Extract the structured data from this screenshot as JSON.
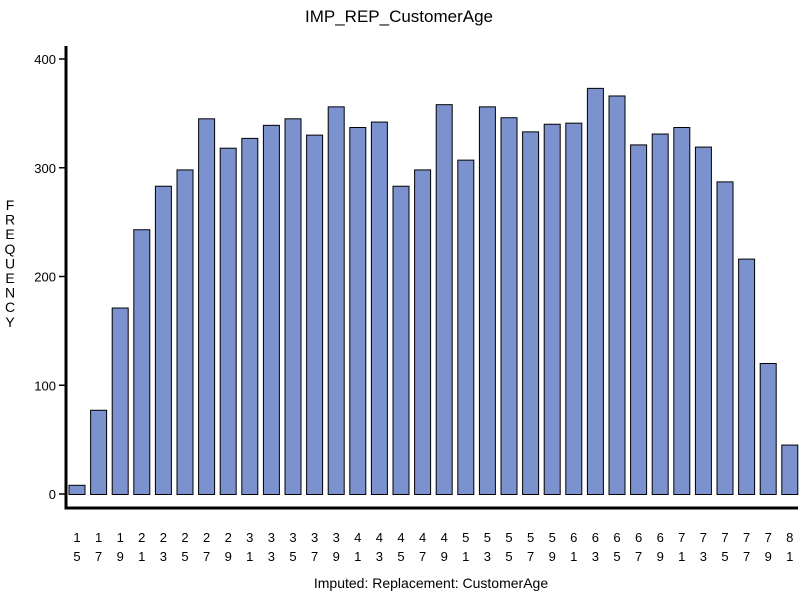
{
  "chart_data": {
    "type": "bar",
    "title": "IMP_REP_CustomerAge",
    "xlabel": "Imputed: Replacement: CustomerAge",
    "ylabel": "FREQUENCY",
    "ylim": [
      0,
      400
    ],
    "yticks": [
      0,
      100,
      200,
      300,
      400
    ],
    "grid": false,
    "bar_color": "#7B92CE",
    "categories": [
      "15",
      "17",
      "19",
      "21",
      "23",
      "25",
      "27",
      "29",
      "31",
      "33",
      "35",
      "37",
      "39",
      "41",
      "43",
      "45",
      "47",
      "49",
      "51",
      "53",
      "55",
      "57",
      "59",
      "61",
      "63",
      "65",
      "67",
      "69",
      "71",
      "73",
      "75",
      "77",
      "79",
      "81"
    ],
    "values": [
      8,
      77,
      171,
      243,
      283,
      298,
      345,
      318,
      327,
      339,
      345,
      330,
      356,
      337,
      342,
      283,
      298,
      358,
      307,
      356,
      346,
      333,
      340,
      341,
      373,
      366,
      321,
      331,
      337,
      319,
      287,
      216,
      120,
      45
    ]
  }
}
